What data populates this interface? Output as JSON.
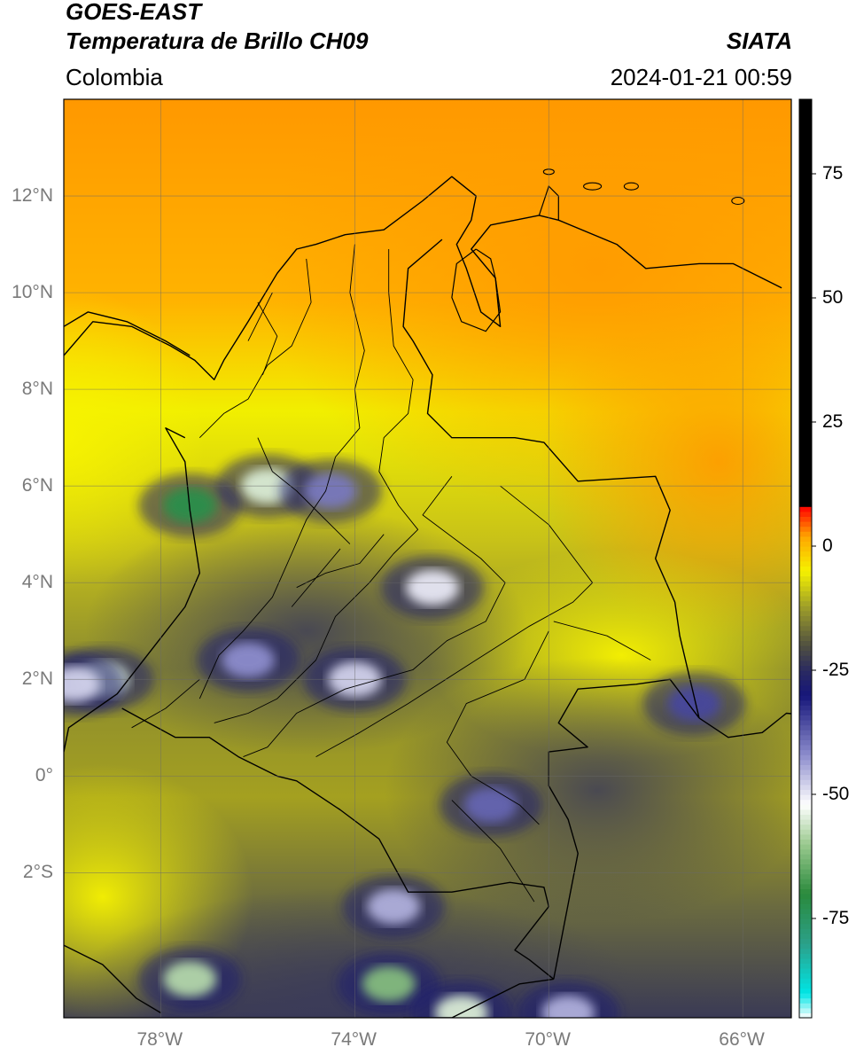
{
  "header": {
    "satellite": "GOES-EAST",
    "product": "Temperatura de Brillo CH09",
    "brand": "SIATA",
    "region": "Colombia",
    "datetime": "2024-01-21 00:59"
  },
  "map": {
    "lon_range": [
      -80,
      -65
    ],
    "lat_range": [
      -5,
      14
    ],
    "lat_ticks": [
      {
        "value": 12,
        "label": "12°N"
      },
      {
        "value": 10,
        "label": "10°N"
      },
      {
        "value": 8,
        "label": "8°N"
      },
      {
        "value": 6,
        "label": "6°N"
      },
      {
        "value": 4,
        "label": "4°N"
      },
      {
        "value": 2,
        "label": "2°N"
      },
      {
        "value": 0,
        "label": "0°"
      },
      {
        "value": -2,
        "label": "2°S"
      }
    ],
    "lon_ticks": [
      {
        "value": -78,
        "label": "78°W"
      },
      {
        "value": -74,
        "label": "74°W"
      },
      {
        "value": -70,
        "label": "70°W"
      },
      {
        "value": -66,
        "label": "66°W"
      }
    ],
    "grid": true
  },
  "colorbar": {
    "range": [
      -95,
      90
    ],
    "tick_values": [
      75,
      50,
      25,
      0,
      -25,
      -50,
      -75
    ],
    "tick_labels": [
      "75",
      "50",
      "25",
      "0",
      "-25",
      "-50",
      "-75"
    ],
    "stops": [
      {
        "value": -95,
        "color": "#ffffff"
      },
      {
        "value": -90,
        "color": "#00e5e5"
      },
      {
        "value": -80,
        "color": "#2ba089"
      },
      {
        "value": -70,
        "color": "#2a8a3c"
      },
      {
        "value": -60,
        "color": "#9ac98e"
      },
      {
        "value": -52,
        "color": "#ffffff"
      },
      {
        "value": -42,
        "color": "#8c8ccc"
      },
      {
        "value": -30,
        "color": "#16167a"
      },
      {
        "value": -25,
        "color": "#2a2a60"
      },
      {
        "value": -20,
        "color": "#505040"
      },
      {
        "value": -12,
        "color": "#a0a028"
      },
      {
        "value": -5,
        "color": "#f5f200"
      },
      {
        "value": 2,
        "color": "#ffa500"
      },
      {
        "value": 8,
        "color": "#ff0000"
      },
      {
        "value": 8.01,
        "color": "#000000"
      },
      {
        "value": 90,
        "color": "#000000"
      }
    ]
  },
  "convection_cells": [
    {
      "lon": -75.8,
      "lat": 6.0,
      "temp": -55
    },
    {
      "lon": -77.4,
      "lat": 5.6,
      "temp": -72
    },
    {
      "lon": -74.5,
      "lat": 5.9,
      "temp": -40
    },
    {
      "lon": -72.4,
      "lat": 3.9,
      "temp": -50
    },
    {
      "lon": -79.2,
      "lat": 2.0,
      "temp": -55
    },
    {
      "lon": -79.8,
      "lat": 1.9,
      "temp": -48
    },
    {
      "lon": -74.0,
      "lat": 2.0,
      "temp": -48
    },
    {
      "lon": -76.2,
      "lat": 2.4,
      "temp": -42
    },
    {
      "lon": -67.0,
      "lat": 1.5,
      "temp": -35
    },
    {
      "lon": -71.2,
      "lat": -0.6,
      "temp": -38
    },
    {
      "lon": -73.2,
      "lat": -2.7,
      "temp": -45
    },
    {
      "lon": -77.4,
      "lat": -4.2,
      "temp": -58
    },
    {
      "lon": -73.3,
      "lat": -4.3,
      "temp": -62
    },
    {
      "lon": -71.8,
      "lat": -4.9,
      "temp": -55
    },
    {
      "lon": -69.6,
      "lat": -4.9,
      "temp": -45
    }
  ]
}
